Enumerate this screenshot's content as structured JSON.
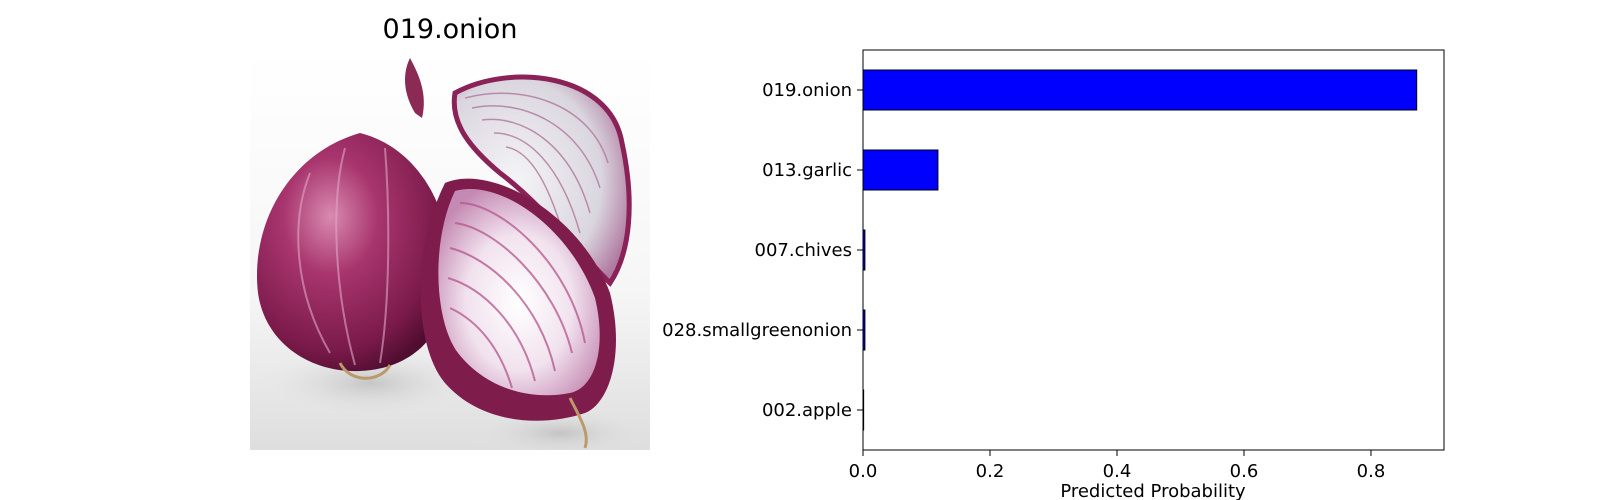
{
  "image_panel": {
    "title": "019.onion",
    "icon": "red-onion-photo"
  },
  "chart_data": {
    "type": "bar",
    "orientation": "horizontal",
    "categories": [
      "019.onion",
      "013.garlic",
      "007.chives",
      "028.smallgreenonion",
      "002.apple"
    ],
    "values": [
      0.872,
      0.118,
      0.003,
      0.003,
      0.001
    ],
    "xlabel": "Predicted Probability",
    "ylabel": "",
    "xlim": [
      0,
      0.915
    ],
    "xticks": [
      0.0,
      0.2,
      0.4,
      0.6,
      0.8
    ],
    "xtick_labels": [
      "0.0",
      "0.2",
      "0.4",
      "0.6",
      "0.8"
    ],
    "grid": false,
    "bar_color": "#0000ff",
    "edge_color": "#000000"
  }
}
